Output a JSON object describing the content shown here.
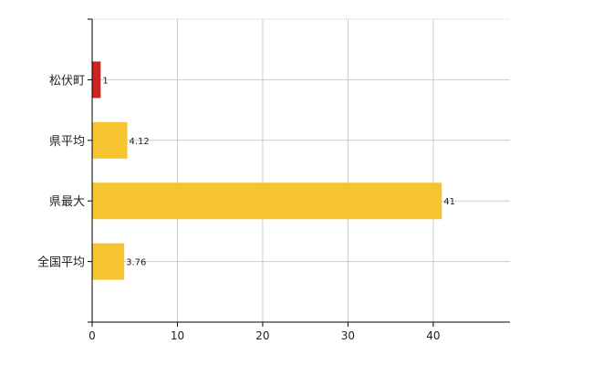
{
  "chart_data": {
    "type": "bar",
    "orientation": "horizontal",
    "categories": [
      "松伏町",
      "県平均",
      "県最大",
      "全国平均"
    ],
    "values": [
      1,
      4.12,
      41,
      3.76
    ],
    "data_labels": [
      "1",
      "4.12",
      "41",
      "3.76"
    ],
    "colors": [
      "#cc2222",
      "#f7c431",
      "#f7c431",
      "#f7c431"
    ],
    "title": "",
    "xlabel": "",
    "ylabel": "",
    "xlim": [
      0,
      49
    ],
    "xticks": [
      0,
      10,
      20,
      30,
      40
    ],
    "grid": true,
    "grid_color": "#cccccc",
    "axis_color": "#000000"
  }
}
